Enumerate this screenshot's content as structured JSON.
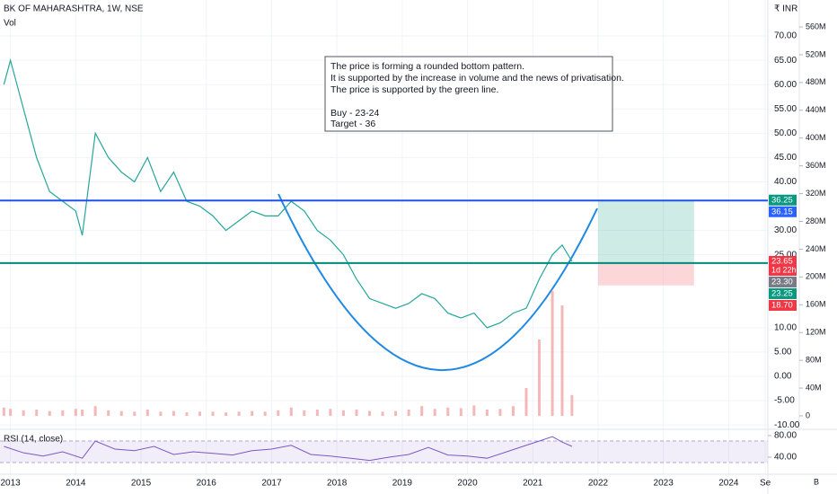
{
  "chart_data": [
    {
      "type": "line",
      "title": "BK OF MAHARASHTRA, 1W, NSE",
      "subtitle": "Vol",
      "currency_label": "₹ INR",
      "x": [
        2012.9,
        2013.0,
        2013.2,
        2013.4,
        2013.6,
        2013.8,
        2014.0,
        2014.1,
        2014.3,
        2014.5,
        2014.7,
        2014.9,
        2015.1,
        2015.3,
        2015.5,
        2015.7,
        2015.9,
        2016.1,
        2016.3,
        2016.5,
        2016.7,
        2016.9,
        2017.1,
        2017.3,
        2017.5,
        2017.7,
        2017.9,
        2018.1,
        2018.3,
        2018.5,
        2018.7,
        2018.9,
        2019.1,
        2019.3,
        2019.5,
        2019.7,
        2019.9,
        2020.1,
        2020.3,
        2020.5,
        2020.7,
        2020.9,
        2021.1,
        2021.3,
        2021.45,
        2021.6
      ],
      "series": [
        {
          "color": "#26a69a",
          "values": [
            60,
            65,
            55,
            45,
            38,
            36,
            34,
            29,
            50,
            45,
            42,
            40,
            45,
            38,
            42,
            36,
            35,
            33,
            30,
            32,
            34,
            33,
            33,
            36,
            34,
            30,
            28,
            25,
            20,
            16,
            15,
            14,
            15,
            17,
            16,
            13,
            12,
            13,
            10,
            11,
            13,
            14,
            20,
            25,
            27,
            23.65
          ]
        },
        {
          "name": "Vol",
          "axis": "y2",
          "color": "#ef9a9a",
          "values": [
            12,
            10,
            8,
            9,
            7,
            8,
            10,
            9,
            14,
            8,
            7,
            6,
            9,
            6,
            7,
            5,
            6,
            6,
            5,
            6,
            7,
            6,
            8,
            12,
            8,
            9,
            10,
            8,
            9,
            7,
            6,
            7,
            9,
            14,
            10,
            12,
            11,
            15,
            9,
            10,
            14,
            40,
            110,
            180,
            159,
            30
          ]
        }
      ],
      "xlim": [
        2012.84,
        2024.6
      ],
      "xticks": [
        2013,
        2014,
        2015,
        2016,
        2017,
        2018,
        2019,
        2020,
        2021,
        2022,
        2023,
        2024,
        {
          "value": 2024.56,
          "label": "Se"
        }
      ],
      "ylim": [
        -10.9,
        77.4
      ],
      "yticks": [
        {
          "value": 70,
          "label": "70.00"
        },
        {
          "value": 65,
          "label": "65.00"
        },
        {
          "value": 60,
          "label": "60.00"
        },
        {
          "value": 55,
          "label": "55.00"
        },
        {
          "value": 50,
          "label": "50.00"
        },
        {
          "value": 45,
          "label": "45.00"
        },
        {
          "value": 40,
          "label": "40.00"
        },
        {
          "value": 30,
          "label": "30.00"
        },
        {
          "value": 25,
          "label": "25.00"
        },
        {
          "value": 10,
          "label": "10.00"
        },
        {
          "value": 5,
          "label": "5.00"
        },
        {
          "value": 0,
          "label": "0.00"
        },
        {
          "value": -5,
          "label": "-5.00"
        },
        {
          "value": -10,
          "label": "-10.00"
        }
      ],
      "y2lim": [
        -19.4,
        598.8
      ],
      "y2ticks": [
        {
          "value": 560,
          "label": "560M"
        },
        {
          "value": 520,
          "label": "520M"
        },
        {
          "value": 480,
          "label": "480M"
        },
        {
          "value": 440,
          "label": "440M"
        },
        {
          "value": 400,
          "label": "400M"
        },
        {
          "value": 360,
          "label": "360M"
        },
        {
          "value": 320,
          "label": "320M"
        },
        {
          "value": 280,
          "label": "280M"
        },
        {
          "value": 240,
          "label": "240M"
        },
        {
          "value": 200,
          "label": "200M"
        },
        {
          "value": 160,
          "label": "160M"
        },
        {
          "value": 120,
          "label": "120M"
        },
        {
          "value": 80,
          "label": "80M"
        },
        {
          "value": 40,
          "label": "40M"
        },
        0
      ],
      "hlines": [
        {
          "value": 36.15,
          "color": "#1e53e5"
        },
        {
          "value": 23.3,
          "color": "#00897b"
        }
      ],
      "position": {
        "x": [
          2022.0,
          2023.47
        ],
        "entry": 23.3,
        "target": 36.25,
        "stop": 18.7
      },
      "price_tags": [
        {
          "value": 36.25,
          "color": "#089981"
        },
        {
          "value": 36.15,
          "color": "#2962ff"
        },
        {
          "value": 23.65,
          "countdown": "1d 22h",
          "color": "#f23645"
        },
        {
          "value": 23.3,
          "label": "23.30",
          "color": "#787b86"
        },
        {
          "value": 23.25,
          "color": "#089981"
        },
        {
          "value": 18.7,
          "label": "18.70",
          "color": "#f23645"
        }
      ],
      "annotation": [
        "The price is forming a rounded bottom pattern.",
        "It is supported by the increase in volume and the news of privatisation.",
        "The price is supported by the green line.",
        "Buy - 23-24",
        "Target - 36"
      ]
    },
    {
      "type": "line",
      "title": "RSI (14, close)",
      "x": [
        2012.9,
        2013.2,
        2013.5,
        2013.8,
        2014.1,
        2014.3,
        2014.6,
        2014.9,
        2015.2,
        2015.5,
        2015.8,
        2016.1,
        2016.4,
        2016.7,
        2017.0,
        2017.3,
        2017.6,
        2017.9,
        2018.2,
        2018.5,
        2018.8,
        2019.1,
        2019.4,
        2019.7,
        2020.0,
        2020.3,
        2020.6,
        2020.9,
        2021.1,
        2021.3,
        2021.45,
        2021.6
      ],
      "series": [
        {
          "color": "#7e57c2",
          "values": [
            60,
            48,
            42,
            50,
            38,
            70,
            55,
            52,
            60,
            45,
            50,
            47,
            44,
            52,
            55,
            62,
            45,
            42,
            38,
            34,
            40,
            45,
            58,
            44,
            42,
            38,
            50,
            62,
            70,
            78,
            68,
            60
          ]
        }
      ],
      "ylim": [
        8.3,
        88.3
      ],
      "yticks": [
        {
          "value": 80,
          "label": "80.00"
        },
        {
          "value": 40,
          "label": "40.00"
        }
      ],
      "band": [
        30,
        70
      ]
    }
  ]
}
